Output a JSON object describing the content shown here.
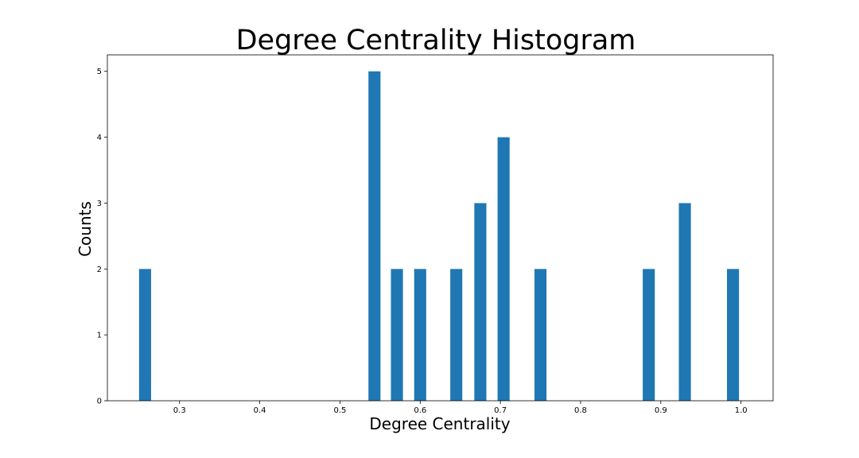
{
  "chart_data": {
    "type": "bar",
    "title": "Degree Centrality Histogram",
    "xlabel": "Degree Centrality",
    "ylabel": "Counts",
    "xlim": [
      0.21,
      1.04
    ],
    "ylim": [
      0,
      5.25
    ],
    "xticks": [
      0.3,
      0.4,
      0.5,
      0.6,
      0.7,
      0.8,
      0.9,
      1.0
    ],
    "xtick_labels": [
      "0.3",
      "0.4",
      "0.5",
      "0.6",
      "0.7",
      "0.8",
      "0.9",
      "1.0"
    ],
    "yticks": [
      0,
      1,
      2,
      3,
      4,
      5
    ],
    "ytick_labels": [
      "0",
      "1",
      "2",
      "3",
      "4",
      "5"
    ],
    "bar_width": 0.015,
    "color": "#1f77b4",
    "grid": false,
    "bars": [
      {
        "x": 0.257,
        "count": 2
      },
      {
        "x": 0.543,
        "count": 5
      },
      {
        "x": 0.571,
        "count": 2
      },
      {
        "x": 0.6,
        "count": 2
      },
      {
        "x": 0.645,
        "count": 2
      },
      {
        "x": 0.675,
        "count": 3
      },
      {
        "x": 0.704,
        "count": 4
      },
      {
        "x": 0.75,
        "count": 2
      },
      {
        "x": 0.885,
        "count": 2
      },
      {
        "x": 0.93,
        "count": 3
      },
      {
        "x": 0.99,
        "count": 2
      }
    ]
  }
}
